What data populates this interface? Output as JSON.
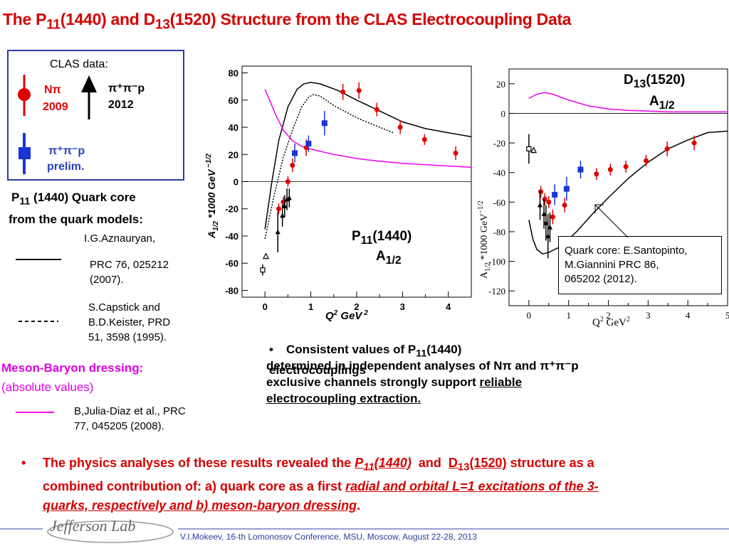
{
  "title": {
    "pre": "The  P",
    "sub1": "11",
    "mid1": "(1440) and D",
    "sub2": "13",
    "post": "(1520) Structure from the CLAS  Electrocoupling Data"
  },
  "legend": {
    "header": "CLAS data",
    "colon": ":",
    "npi_label": "Nπ",
    "npi_year": "2009",
    "pipi_label": "π⁺π⁻p",
    "pipi_year": "2012",
    "prelim_label": "π⁺π⁻p",
    "prelim_note": "prelim."
  },
  "quark_core": {
    "pre": "P",
    "sub": "11",
    "post": " (1440) Quark core",
    "line2": "from the quark  models:"
  },
  "refs": {
    "r1a": "I.G.Aznauryan,",
    "r1b": "PRC 76, 025212",
    "r1c": "(2007).",
    "r2a": "S.Capstick  and",
    "r2b": "B.D.Keister, PRD",
    "r2c": "51, 3598 (1995).",
    "mb_head": "Meson-Baryon dressing:",
    "mb_sub": "(absolute values)",
    "r3a": "B,Julia-Diaz et al., PRC",
    "r3b": "77, 045205 (2008)."
  },
  "bullet_right": {
    "bullet": "•",
    "l1_pre": "Consistent values of P",
    "l1_sub": "11",
    "l1_post": "(1440) electrocouplings",
    "l2_pre": "determined in independent analyses of N",
    "l2_pi": "π",
    "l2_and": " and  ",
    "l2_pipi": "π⁺π⁻p",
    "l3_pre": "exclusive channels strongly support ",
    "l3_u": "reliable ",
    "l4_u": "electrocoupling extraction."
  },
  "bottom": {
    "bullet": "•",
    "t1": "The physics analyses of these results revealed the ",
    "p11": "P",
    "p11sub": "11",
    "p11post": "(1440)",
    "and": "  and  ",
    "d13": "D",
    "d13sub": "13",
    "d13post": "(1520)",
    "t2": " structure as a",
    "t3": "combined contribution of:  a) quark core as  a first ",
    "t4": "radial  and  orbital  L=1 excitations of the 3-",
    "t5": "quarks, respectively and b) meson-baryon  dressing",
    "t6": "."
  },
  "footer": {
    "text": "V.I.Mokeev, 16-th Lomonosov Conference, MSU, Moscow, August 22-28, 2013",
    "logo": "Jefferson Lab"
  },
  "colors": {
    "red": "#e00000",
    "blue": "#1a35d6",
    "magenta": "#ee00ee",
    "title_red": "#d40000"
  },
  "chart_data": [
    {
      "type": "scatter",
      "panel_label_pre": "P",
      "panel_label_sub": "11",
      "panel_label_post": "(1440)",
      "amp_pre": "A",
      "amp_sub": "1/2",
      "xlabel": "Q² GeV²",
      "ylabel": "A1/2 *1000 GeV^-1/2",
      "xlim": [
        -0.5,
        4.5
      ],
      "ylim": [
        -85,
        85
      ],
      "xticks": [
        "0",
        "1",
        "2",
        "3",
        "4"
      ],
      "yticks": [
        "80",
        "60",
        "40",
        "20",
        "0",
        "-20",
        "-40",
        "-60",
        "-80"
      ],
      "series": [
        {
          "marker": "circle",
          "color": "#e00000",
          "points": [
            [
              0.3,
              -20,
              4
            ],
            [
              0.4,
              -15,
              4
            ],
            [
              0.5,
              0,
              4
            ],
            [
              0.6,
              12,
              5
            ],
            [
              0.9,
              25,
              6
            ],
            [
              1.7,
              66,
              6
            ],
            [
              2.05,
              67,
              6
            ],
            [
              2.44,
              53,
              5
            ],
            [
              2.95,
              40,
              5
            ],
            [
              3.48,
              31,
              4
            ],
            [
              4.16,
              21,
              5
            ]
          ]
        },
        {
          "marker": "square",
          "color": "#1a35d6",
          "points": [
            [
              0.65,
              21,
              7
            ],
            [
              0.95,
              28,
              6
            ],
            [
              1.3,
              43,
              9
            ]
          ]
        },
        {
          "marker": "triangle",
          "color": "#000000",
          "points": [
            [
              0.28,
              -37,
              15
            ],
            [
              0.38,
              -25,
              8
            ],
            [
              0.43,
              -18,
              8
            ],
            [
              0.48,
              -13,
              8
            ],
            [
              0.53,
              -12,
              7
            ]
          ]
        },
        {
          "marker": "open-square",
          "color": "#000000",
          "points": [
            [
              -0.05,
              -65,
              4
            ]
          ]
        },
        {
          "marker": "open-triangle",
          "color": "#000000",
          "points": [
            [
              0.02,
              -55,
              2
            ]
          ]
        }
      ],
      "curves": [
        {
          "style": "solid",
          "color": "#000000",
          "points": [
            [
              0.0,
              -35
            ],
            [
              0.15,
              0
            ],
            [
              0.3,
              30
            ],
            [
              0.5,
              55
            ],
            [
              0.7,
              68
            ],
            [
              0.85,
              72
            ],
            [
              1.0,
              73
            ],
            [
              1.2,
              72
            ],
            [
              1.6,
              67
            ],
            [
              2.0,
              60
            ],
            [
              2.5,
              52
            ],
            [
              3.0,
              44
            ],
            [
              3.5,
              39
            ],
            [
              4.0,
              36
            ],
            [
              4.5,
              33
            ]
          ]
        },
        {
          "style": "dotted",
          "color": "#000000",
          "points": [
            [
              0.0,
              -42
            ],
            [
              0.2,
              -10
            ],
            [
              0.4,
              18
            ],
            [
              0.6,
              38
            ],
            [
              0.8,
              55
            ],
            [
              0.95,
              62
            ],
            [
              1.05,
              64
            ],
            [
              1.2,
              63
            ],
            [
              1.5,
              56
            ],
            [
              2.0,
              47
            ],
            [
              2.5,
              40
            ],
            [
              2.8,
              36
            ]
          ]
        },
        {
          "style": "solid",
          "color": "#ee00ee",
          "points": [
            [
              0.0,
              68
            ],
            [
              0.1,
              60
            ],
            [
              0.25,
              48
            ],
            [
              0.4,
              38
            ],
            [
              0.6,
              30
            ],
            [
              0.8,
              26
            ],
            [
              1.0,
              24
            ],
            [
              1.5,
              20
            ],
            [
              2.0,
              17
            ],
            [
              2.5,
              15
            ],
            [
              3.0,
              13.5
            ],
            [
              3.5,
              12.5
            ],
            [
              4.0,
              11.5
            ],
            [
              4.5,
              10.5
            ]
          ]
        }
      ]
    },
    {
      "type": "scatter",
      "panel_label_pre": "D",
      "panel_label_sub": "13",
      "panel_label_post": "(1520)",
      "amp_pre": "A",
      "amp_sub": "1/2",
      "xlabel": "Q² GeV²",
      "ylabel": "A1/2 *1000 GeV^-1/2",
      "xlim": [
        -0.5,
        5.0
      ],
      "ylim": [
        -130,
        30
      ],
      "xticks": [
        "0",
        "1",
        "2",
        "3",
        "4",
        "5"
      ],
      "yticks": [
        "20",
        "0",
        "-20",
        "-40",
        "-60",
        "-80",
        "-100",
        "-120"
      ],
      "series": [
        {
          "marker": "circle",
          "color": "#e00000",
          "points": [
            [
              0.3,
              -53,
              4
            ],
            [
              0.4,
              -58,
              4
            ],
            [
              0.5,
              -60,
              4
            ],
            [
              0.6,
              -70,
              5
            ],
            [
              0.9,
              -62,
              5
            ],
            [
              1.7,
              -41,
              4
            ],
            [
              2.05,
              -38,
              4
            ],
            [
              2.44,
              -36,
              4
            ],
            [
              2.95,
              -32,
              4
            ],
            [
              3.48,
              -24,
              5
            ],
            [
              4.16,
              -20,
              5
            ]
          ]
        },
        {
          "marker": "square",
          "color": "#1a35d6",
          "points": [
            [
              0.65,
              -55,
              7
            ],
            [
              0.95,
              -51,
              8
            ],
            [
              1.3,
              -38,
              6
            ]
          ]
        },
        {
          "marker": "triangle",
          "color": "#000000",
          "points": [
            [
              0.28,
              -62,
              10
            ],
            [
              0.38,
              -68,
              10
            ],
            [
              0.43,
              -74,
              12
            ],
            [
              0.48,
              -83,
              15
            ],
            [
              0.53,
              -77,
              10
            ]
          ]
        },
        {
          "marker": "open-square",
          "color": "#000000",
          "points": [
            [
              0.0,
              -24,
              10
            ]
          ]
        },
        {
          "marker": "open-triangle",
          "color": "#000000",
          "points": [
            [
              0.12,
              -25,
              2
            ]
          ]
        }
      ],
      "curves": [
        {
          "style": "solid",
          "color": "#000000",
          "points": [
            [
              0.0,
              -72
            ],
            [
              0.1,
              -85
            ],
            [
              0.2,
              -92
            ],
            [
              0.35,
              -95
            ],
            [
              0.5,
              -94
            ],
            [
              0.8,
              -90
            ],
            [
              1.2,
              -80
            ],
            [
              1.6,
              -68
            ],
            [
              2.0,
              -57
            ],
            [
              2.5,
              -44
            ],
            [
              3.0,
              -33
            ],
            [
              3.5,
              -24
            ],
            [
              4.0,
              -18
            ],
            [
              4.5,
              -13
            ],
            [
              5.0,
              -12
            ]
          ]
        },
        {
          "style": "solid",
          "color": "#ee00ee",
          "points": [
            [
              0.0,
              10
            ],
            [
              0.2,
              13
            ],
            [
              0.4,
              14
            ],
            [
              0.6,
              13
            ],
            [
              1.0,
              9
            ],
            [
              1.5,
              5
            ],
            [
              2.0,
              3
            ],
            [
              2.5,
              2
            ],
            [
              3.0,
              1.5
            ],
            [
              3.5,
              1
            ],
            [
              4.0,
              1
            ],
            [
              5.0,
              1
            ]
          ]
        }
      ],
      "annotation": {
        "l1": "Quark core: E.Santopinto,",
        "l2": "M.Giannini PRC 86,",
        "l3": "065202 (2012)."
      }
    }
  ]
}
